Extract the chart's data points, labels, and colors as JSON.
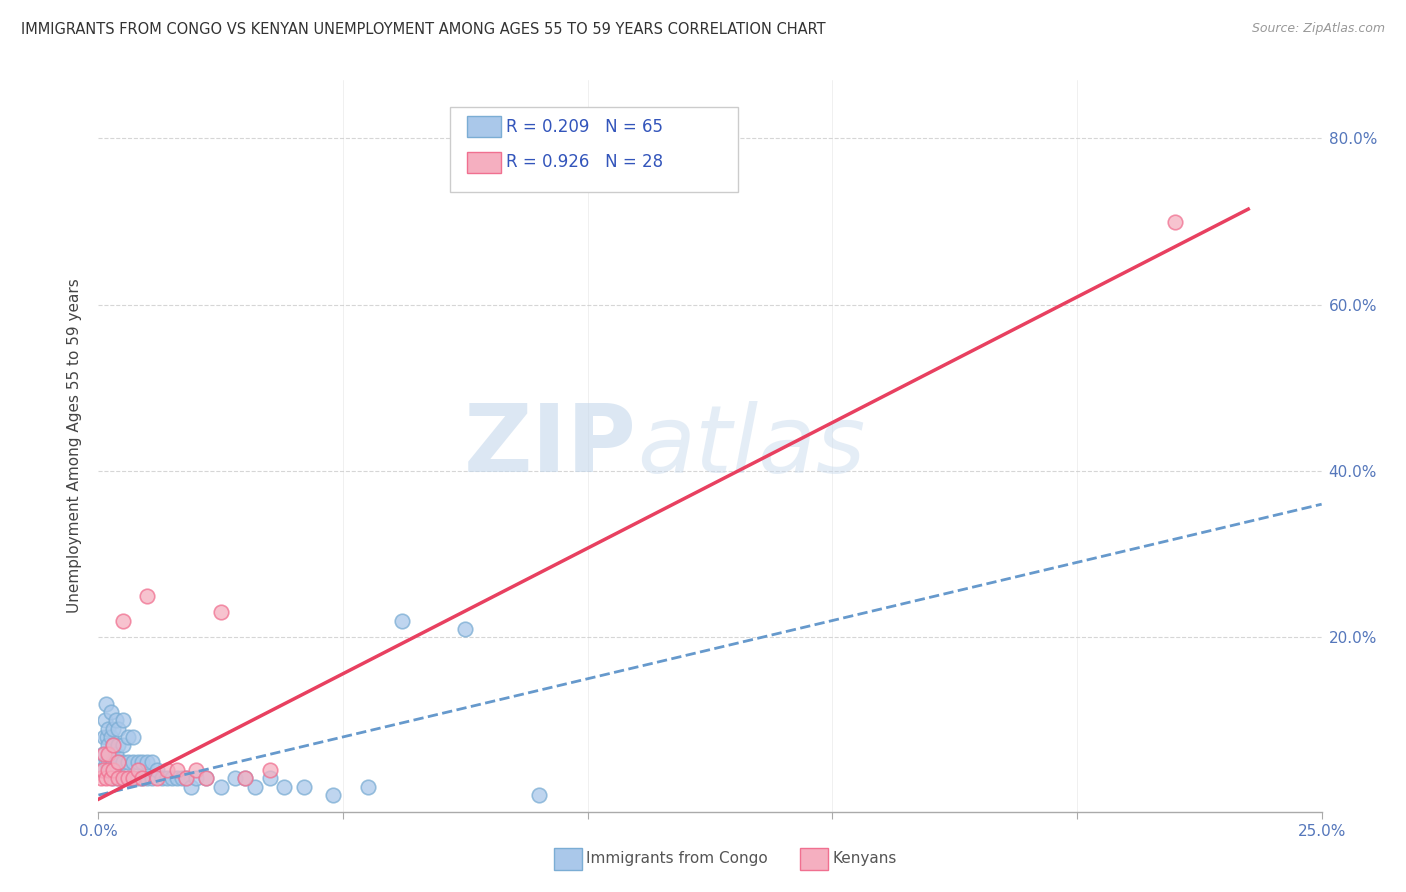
{
  "title": "IMMIGRANTS FROM CONGO VS KENYAN UNEMPLOYMENT AMONG AGES 55 TO 59 YEARS CORRELATION CHART",
  "source": "Source: ZipAtlas.com",
  "ylabel": "Unemployment Among Ages 55 to 59 years",
  "xlim": [
    0.0,
    0.25
  ],
  "ylim": [
    -0.01,
    0.87
  ],
  "xticks": [
    0.0,
    0.05,
    0.1,
    0.15,
    0.2,
    0.25
  ],
  "yticks": [
    0.0,
    0.2,
    0.4,
    0.6,
    0.8
  ],
  "ytick_right_labels": [
    "",
    "20.0%",
    "40.0%",
    "60.0%",
    "80.0%"
  ],
  "xtick_labels": [
    "0.0%",
    "",
    "",
    "",
    "",
    "25.0%"
  ],
  "background_color": "#ffffff",
  "grid_color": "#cccccc",
  "watermark_zip": "ZIP",
  "watermark_atlas": "atlas",
  "legend_r1": "R = 0.209",
  "legend_n1": "N = 65",
  "legend_r2": "R = 0.926",
  "legend_n2": "N = 28",
  "legend_color1": "#aac8ea",
  "legend_color2": "#f5afc0",
  "scatter_color1": "#7badd4",
  "scatter_color2": "#f07090",
  "line_color1": "#6699cc",
  "line_color2": "#e84060",
  "congo_x": [
    0.0005,
    0.001,
    0.0012,
    0.0013,
    0.0015,
    0.0015,
    0.0018,
    0.002,
    0.002,
    0.002,
    0.0022,
    0.0023,
    0.0025,
    0.0025,
    0.003,
    0.003,
    0.003,
    0.003,
    0.0032,
    0.0035,
    0.0035,
    0.004,
    0.004,
    0.004,
    0.004,
    0.005,
    0.005,
    0.005,
    0.005,
    0.006,
    0.006,
    0.006,
    0.007,
    0.007,
    0.007,
    0.008,
    0.008,
    0.009,
    0.009,
    0.01,
    0.01,
    0.011,
    0.011,
    0.012,
    0.013,
    0.014,
    0.015,
    0.016,
    0.017,
    0.018,
    0.019,
    0.02,
    0.022,
    0.025,
    0.028,
    0.03,
    0.032,
    0.035,
    0.038,
    0.042,
    0.048,
    0.055,
    0.062,
    0.075,
    0.09
  ],
  "congo_y": [
    0.04,
    0.06,
    0.08,
    0.1,
    0.05,
    0.12,
    0.08,
    0.05,
    0.07,
    0.09,
    0.06,
    0.04,
    0.08,
    0.11,
    0.03,
    0.05,
    0.07,
    0.09,
    0.04,
    0.06,
    0.1,
    0.03,
    0.05,
    0.07,
    0.09,
    0.03,
    0.05,
    0.07,
    0.1,
    0.03,
    0.05,
    0.08,
    0.03,
    0.05,
    0.08,
    0.03,
    0.05,
    0.03,
    0.05,
    0.03,
    0.05,
    0.03,
    0.05,
    0.04,
    0.03,
    0.03,
    0.03,
    0.03,
    0.03,
    0.03,
    0.02,
    0.03,
    0.03,
    0.02,
    0.03,
    0.03,
    0.02,
    0.03,
    0.02,
    0.02,
    0.01,
    0.02,
    0.22,
    0.21,
    0.01
  ],
  "kenyan_x": [
    0.0005,
    0.001,
    0.0012,
    0.0015,
    0.002,
    0.002,
    0.0025,
    0.003,
    0.003,
    0.004,
    0.004,
    0.005,
    0.005,
    0.006,
    0.007,
    0.008,
    0.009,
    0.01,
    0.012,
    0.014,
    0.016,
    0.018,
    0.02,
    0.022,
    0.025,
    0.03,
    0.035,
    0.22
  ],
  "kenyan_y": [
    0.03,
    0.04,
    0.06,
    0.03,
    0.04,
    0.06,
    0.03,
    0.04,
    0.07,
    0.03,
    0.05,
    0.03,
    0.22,
    0.03,
    0.03,
    0.04,
    0.03,
    0.25,
    0.03,
    0.04,
    0.04,
    0.03,
    0.04,
    0.03,
    0.23,
    0.03,
    0.04,
    0.7
  ],
  "congo_line_x": [
    0.0,
    0.25
  ],
  "congo_line_y": [
    0.01,
    0.36
  ],
  "kenyan_line_x": [
    0.0,
    0.235
  ],
  "kenyan_line_y": [
    0.005,
    0.715
  ]
}
